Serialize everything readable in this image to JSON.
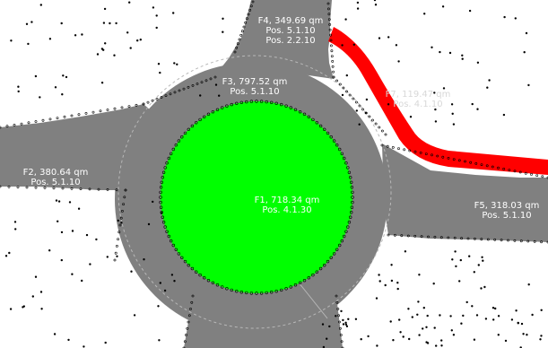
{
  "colors": {
    "background": "#ffffff",
    "pavement": "#808080",
    "center_island": "#00ff00",
    "highlight_path": "#ff0000",
    "label_on_pavement": "#ffffff",
    "label_faded": "#d8d8d8",
    "points": "#000000",
    "guide_line": "#b8b8b8"
  },
  "areas": [
    {
      "id": "F4",
      "area": "F4, 349.69 qm",
      "pos1": "Pos. 5.1.10",
      "pos2": "Pos. 2.2.10",
      "role": "north-arm"
    },
    {
      "id": "F3",
      "area": "F3, 797.52 qm",
      "pos1": "Pos. 5.1.10",
      "role": "ring-roadway"
    },
    {
      "id": "F7",
      "area": "F7, 119.47 qm",
      "pos1": "Pos. 4.1.10",
      "role": "highlighted-strip"
    },
    {
      "id": "F2",
      "area": "F2, 380.64 qm",
      "pos1": "Pos. 5.1.10",
      "role": "west-arm"
    },
    {
      "id": "F1",
      "area": "F1, 718.34 qm",
      "pos1": "Pos. 4.1.30",
      "role": "center-island"
    },
    {
      "id": "F5",
      "area": "F5, 318.03 qm",
      "pos1": "Pos. 5.1.10",
      "role": "east-arm"
    }
  ]
}
